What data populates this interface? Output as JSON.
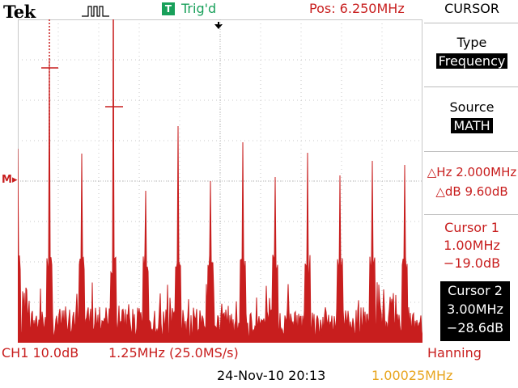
{
  "header": {
    "brand": "Tek",
    "trigger_badge": "T",
    "trigger_status": "Trig'd",
    "position": "Pos: 6.250MHz"
  },
  "menu": {
    "title": "CURSOR",
    "type_label": "Type",
    "type_value": "Frequency",
    "source_label": "Source",
    "source_value": "MATH",
    "delta_hz": "△Hz 2.000MHz",
    "delta_db": "△dB 9.60dB",
    "cursor1": {
      "label": "Cursor 1",
      "freq": "1.00MHz",
      "level": "−19.0dB"
    },
    "cursor2": {
      "label": "Cursor 2",
      "freq": "3.00MHz",
      "level": "−28.6dB"
    }
  },
  "screen": {
    "ref_marker": "M",
    "trace_color": "#c81e1e",
    "grid_color": "#c8c8c8"
  },
  "status": {
    "channel_scale": "CH1 10.0dB",
    "span": "1.25MHz (25.0MS/s)",
    "window": "Hanning",
    "date_time": "24-Nov-10 20:13",
    "frequency": "1.00025MHz"
  }
}
